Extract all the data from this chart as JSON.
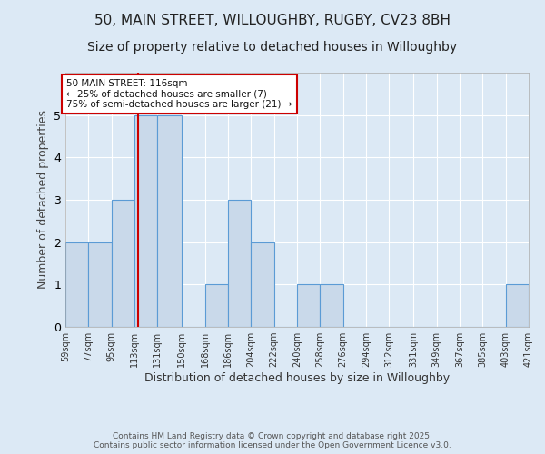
{
  "title_line1": "50, MAIN STREET, WILLOUGHBY, RUGBY, CV23 8BH",
  "title_line2": "Size of property relative to detached houses in Willoughby",
  "xlabel": "Distribution of detached houses by size in Willoughby",
  "ylabel": "Number of detached properties",
  "footer_line1": "Contains HM Land Registry data © Crown copyright and database right 2025.",
  "footer_line2": "Contains public sector information licensed under the Open Government Licence v3.0.",
  "annotation_line1": "50 MAIN STREET: 116sqm",
  "annotation_line2": "← 25% of detached houses are smaller (7)",
  "annotation_line3": "75% of semi-detached houses are larger (21) →",
  "bin_edges": [
    59,
    77,
    95,
    113,
    131,
    150,
    168,
    186,
    204,
    222,
    240,
    258,
    276,
    294,
    312,
    331,
    349,
    367,
    385,
    403,
    421
  ],
  "bar_heights": [
    2,
    2,
    3,
    5,
    5,
    0,
    1,
    3,
    2,
    0,
    1,
    1,
    0,
    0,
    0,
    0,
    0,
    0,
    0,
    1
  ],
  "bar_color": "#c9d9ea",
  "bar_edge_color": "#5b9bd5",
  "red_line_x": 116,
  "ylim": [
    0,
    6
  ],
  "yticks": [
    0,
    1,
    2,
    3,
    4,
    5,
    6
  ],
  "bg_color": "#dce9f5",
  "plot_bg_color": "#dce9f5",
  "annotation_box_edge": "#cc0000",
  "red_line_color": "#cc0000",
  "title_fontsize": 11,
  "subtitle_fontsize": 10,
  "ylabel_fontsize": 9,
  "xlabel_fontsize": 9,
  "tick_fontsize": 7,
  "footer_fontsize": 6.5,
  "annotation_fontsize": 7.5
}
